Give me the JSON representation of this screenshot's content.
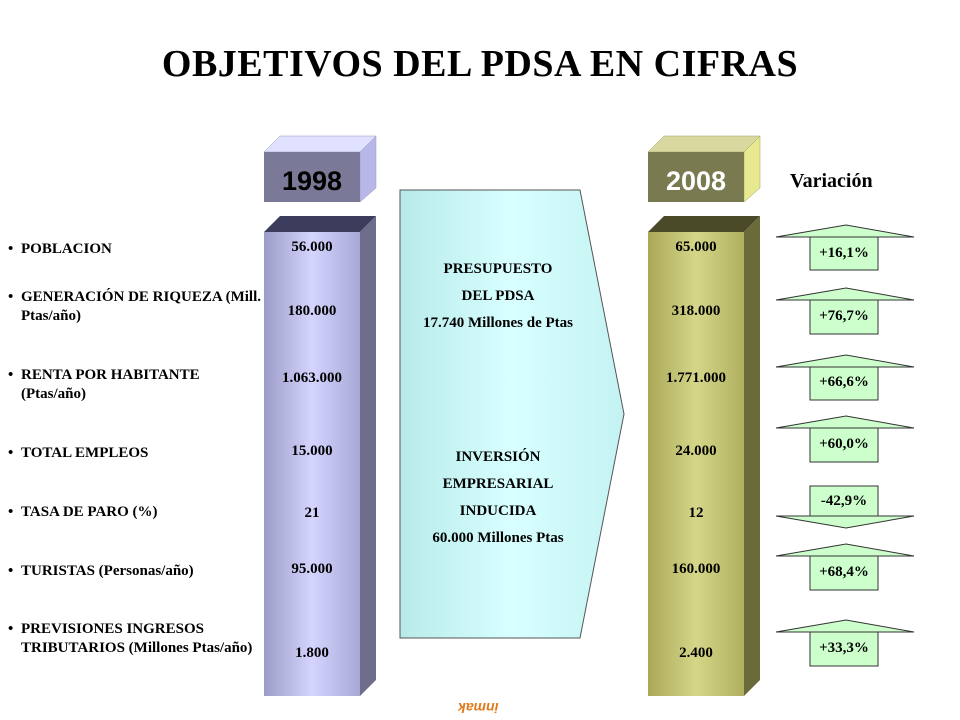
{
  "title": "OBJETIVOS DEL PDSA EN CIFRAS",
  "year_start": "1998",
  "year_end": "2008",
  "variation_header": "Variación",
  "bullet": "•",
  "indicators": [
    {
      "label": "POBLACION",
      "v1998": "56.000",
      "v2008": "65.000",
      "variation": "+16,1%",
      "direction": "up"
    },
    {
      "label": "GENERACIÓN DE RIQUEZA (Mill.  Ptas/año)",
      "v1998": "180.000",
      "v2008": "318.000",
      "variation": "+76,7%",
      "direction": "up"
    },
    {
      "label": "RENTA POR HABITANTE (Ptas/año)",
      "v1998": "1.063.000",
      "v2008": "1.771.000",
      "variation": "+66,6%",
      "direction": "up"
    },
    {
      "label": "TOTAL EMPLEOS",
      "v1998": "15.000",
      "v2008": "24.000",
      "variation": "+60,0%",
      "direction": "up"
    },
    {
      "label": "TASA DE PARO (%)",
      "v1998": "21",
      "v2008": "12",
      "variation": "-42,9%",
      "direction": "down"
    },
    {
      "label": "TURISTAS (Personas/año)",
      "v1998": "95.000",
      "v2008": "160.000",
      "variation": "+68,4%",
      "direction": "up"
    },
    {
      "label": "PREVISIONES  INGRESOS TRIBUTARIOS (Millones Ptas/año)",
      "v1998": "1.800",
      "v2008": "2.400",
      "variation": "+33,3%",
      "direction": "up"
    }
  ],
  "budget": {
    "line1": "PRESUPUESTO",
    "line2": "DEL PDSA",
    "line3": "17.740 Millones de Ptas"
  },
  "investment": {
    "line1": "INVERSIÓN",
    "line2": "EMPRESARIAL",
    "line3": "INDUCIDA",
    "line4": "60.000 Millones Ptas"
  },
  "logo_text": "inmak",
  "colors": {
    "col1998_front": "#c4c4f2",
    "col1998_side": "#6e6e8c",
    "col2008_front": "#c4c46e",
    "col2008_side": "#6a6a3a",
    "arrow_panel": "#ccffff",
    "variation_box": "#ccffcc"
  }
}
